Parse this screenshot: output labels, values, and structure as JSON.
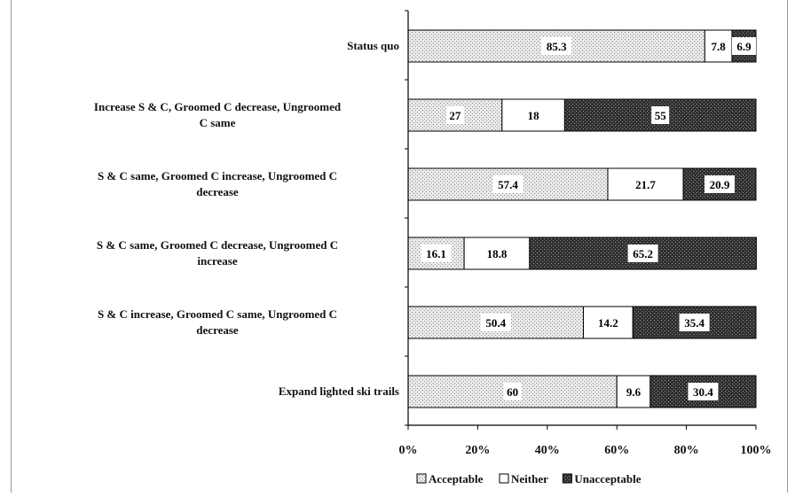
{
  "chart_data": {
    "type": "bar",
    "stacked": true,
    "orientation": "horizontal",
    "percent": true,
    "categories": [
      "Status quo",
      "Increase S & C, Groomed C decrease, Ungroomed C same",
      "S & C same, Groomed C increase, Ungroomed C decrease",
      "S & C same, Groomed C decrease, Ungroomed C increase",
      "S & C increase, Groomed C same, Ungroomed C decrease",
      "Expand lighted ski trails"
    ],
    "series": [
      {
        "name": "Acceptable",
        "values": [
          85.3,
          27,
          57.4,
          16.1,
          50.4,
          60
        ],
        "labels": [
          "85.3",
          "27",
          "57.4",
          "16.1",
          "50.4",
          "60"
        ]
      },
      {
        "name": "Neither",
        "values": [
          7.8,
          18,
          21.7,
          18.8,
          14.2,
          9.6
        ],
        "labels": [
          "7.8",
          "18",
          "21.7",
          "18.8",
          "14.2",
          "9.6"
        ]
      },
      {
        "name": "Unacceptable",
        "values": [
          6.9,
          55,
          20.9,
          65.2,
          35.4,
          30.4
        ],
        "labels": [
          "6.9",
          "55",
          "20.9",
          "65.2",
          "35.4",
          "30.4"
        ]
      }
    ],
    "xticks": [
      "0%",
      "20%",
      "40%",
      "60%",
      "80%",
      "100%"
    ],
    "xlim": [
      0,
      100
    ],
    "title": "",
    "xlabel": "",
    "ylabel": "",
    "grid": false,
    "legend": "bottom",
    "colors": {
      "Acceptable": "#e2e2e2",
      "Neither": "#ffffff",
      "Unacceptable": "#3a3a3a"
    }
  }
}
